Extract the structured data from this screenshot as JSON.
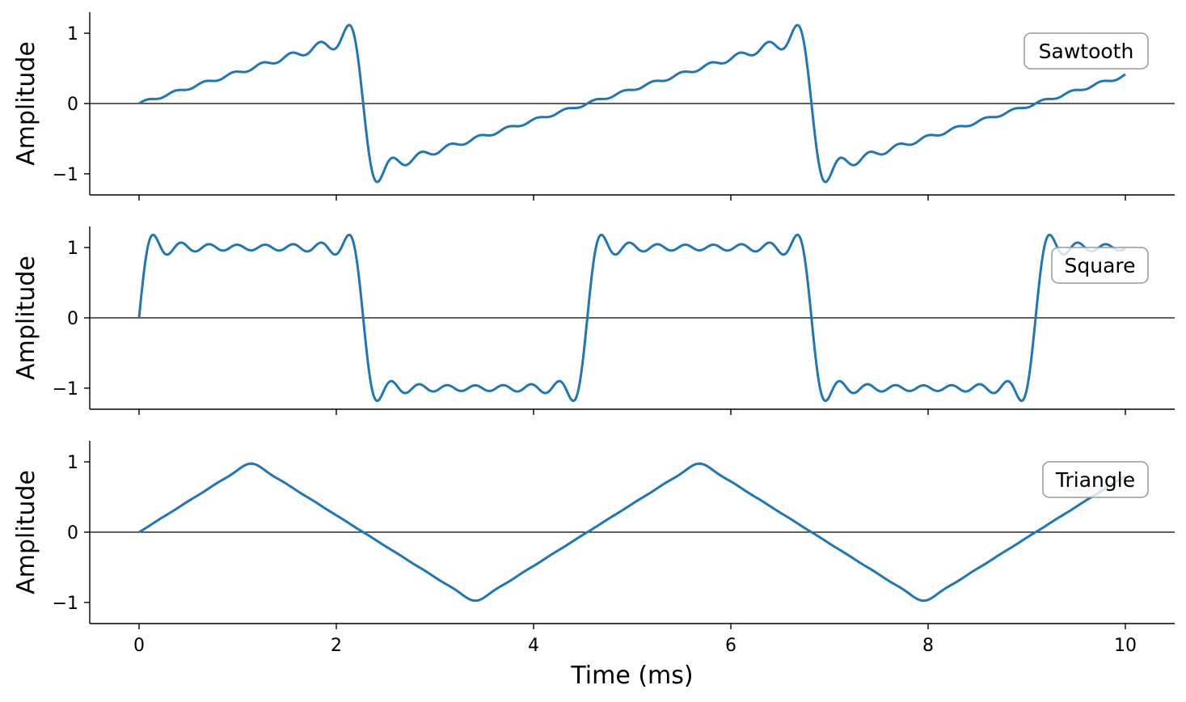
{
  "chart_data": {
    "type": "line",
    "xlabel": "Time (ms)",
    "x_ticks": [
      0,
      2,
      4,
      6,
      8,
      10
    ],
    "xlim": [
      -0.5,
      10.5
    ],
    "x_range": [
      0,
      10
    ],
    "period_ms": 4.545,
    "harmonics": 15,
    "color": "#1f77b4",
    "zero_line_color": "#000000",
    "legend_placement": "top-right",
    "grid": false,
    "panels": [
      {
        "name": "Sawtooth",
        "ylabel": "Amplitude",
        "yticks": [
          1,
          0,
          -1
        ],
        "ylim": [
          -1.3,
          1.3
        ]
      },
      {
        "name": "Square",
        "ylabel": "Amplitude",
        "yticks": [
          1,
          0,
          -1
        ],
        "ylim": [
          -1.3,
          1.3
        ]
      },
      {
        "name": "Triangle",
        "ylabel": "Amplitude",
        "yticks": [
          1,
          0,
          -1
        ],
        "ylim": [
          -1.3,
          1.3
        ]
      }
    ]
  }
}
